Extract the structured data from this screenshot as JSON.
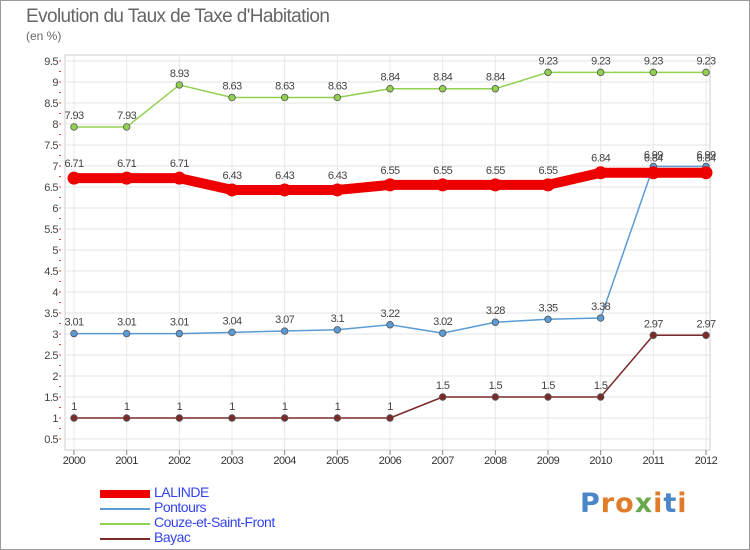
{
  "title": "Evolution du Taux de Taxe d'Habitation",
  "unit_label": "(en %)",
  "logo": {
    "text": "Proxiti",
    "letters": [
      "P",
      "r",
      "o",
      "x",
      "i",
      "t",
      "i"
    ],
    "colors": [
      "#4a86c8",
      "#e07b2a",
      "#e07b2a",
      "#6aa84f",
      "#e07b2a",
      "#4a86c8",
      "#e07b2a"
    ]
  },
  "chart_data": {
    "type": "line",
    "x": [
      "2000",
      "2001",
      "2002",
      "2003",
      "2004",
      "2005",
      "2006",
      "2007",
      "2008",
      "2009",
      "2010",
      "2011",
      "2012"
    ],
    "y_ticks": [
      "0.5",
      "1",
      "1.5",
      "2",
      "2.5",
      "3",
      "3.5",
      "4",
      "4.5",
      "5",
      "5.5",
      "6",
      "6.5",
      "7",
      "7.5",
      "8",
      "8.5",
      "9",
      "9.5"
    ],
    "ylim": [
      0.5,
      9.5
    ],
    "grid": true,
    "legend_position": "bottom-left",
    "series": [
      {
        "name": "LALINDE",
        "color": "#ee0000",
        "values": [
          6.71,
          6.71,
          6.71,
          6.43,
          6.43,
          6.43,
          6.55,
          6.55,
          6.55,
          6.55,
          6.84,
          6.84,
          6.84
        ],
        "labels": [
          "6.71",
          "6.71",
          "6.71",
          "6.43",
          "6.43",
          "6.43",
          "6.55",
          "6.55",
          "6.55",
          "6.55",
          "6.84",
          "6.84",
          "6.84"
        ]
      },
      {
        "name": "Pontours",
        "color": "#5b9bd5",
        "values": [
          3.01,
          3.01,
          3.01,
          3.04,
          3.07,
          3.1,
          3.22,
          3.02,
          3.28,
          3.35,
          3.38,
          6.99,
          6.99
        ],
        "labels": [
          "3.01",
          "3.01",
          "3.01",
          "3.04",
          "3.07",
          "3.1",
          "3.22",
          "3.02",
          "3.28",
          "3.35",
          "3.38",
          "6.99",
          "6.99"
        ]
      },
      {
        "name": "Couze-et-Saint-Front",
        "color": "#92d050",
        "values": [
          7.93,
          7.93,
          8.93,
          8.63,
          8.63,
          8.63,
          8.84,
          8.84,
          8.84,
          9.23,
          9.23,
          9.23,
          9.23
        ],
        "labels": [
          "7.93",
          "7.93",
          "8.93",
          "8.63",
          "8.63",
          "8.63",
          "8.84",
          "8.84",
          "8.84",
          "9.23",
          "9.23",
          "9.23",
          "9.23"
        ]
      },
      {
        "name": "Bayac",
        "color": "#7b2a2a",
        "values": [
          1,
          1,
          1,
          1,
          1,
          1,
          1,
          1.5,
          1.5,
          1.5,
          1.5,
          2.97,
          2.97
        ],
        "labels": [
          "1",
          "1",
          "1",
          "1",
          "1",
          "1",
          "1",
          "1.5",
          "1.5",
          "1.5",
          "1.5",
          "2.97",
          "2.97"
        ]
      }
    ]
  }
}
